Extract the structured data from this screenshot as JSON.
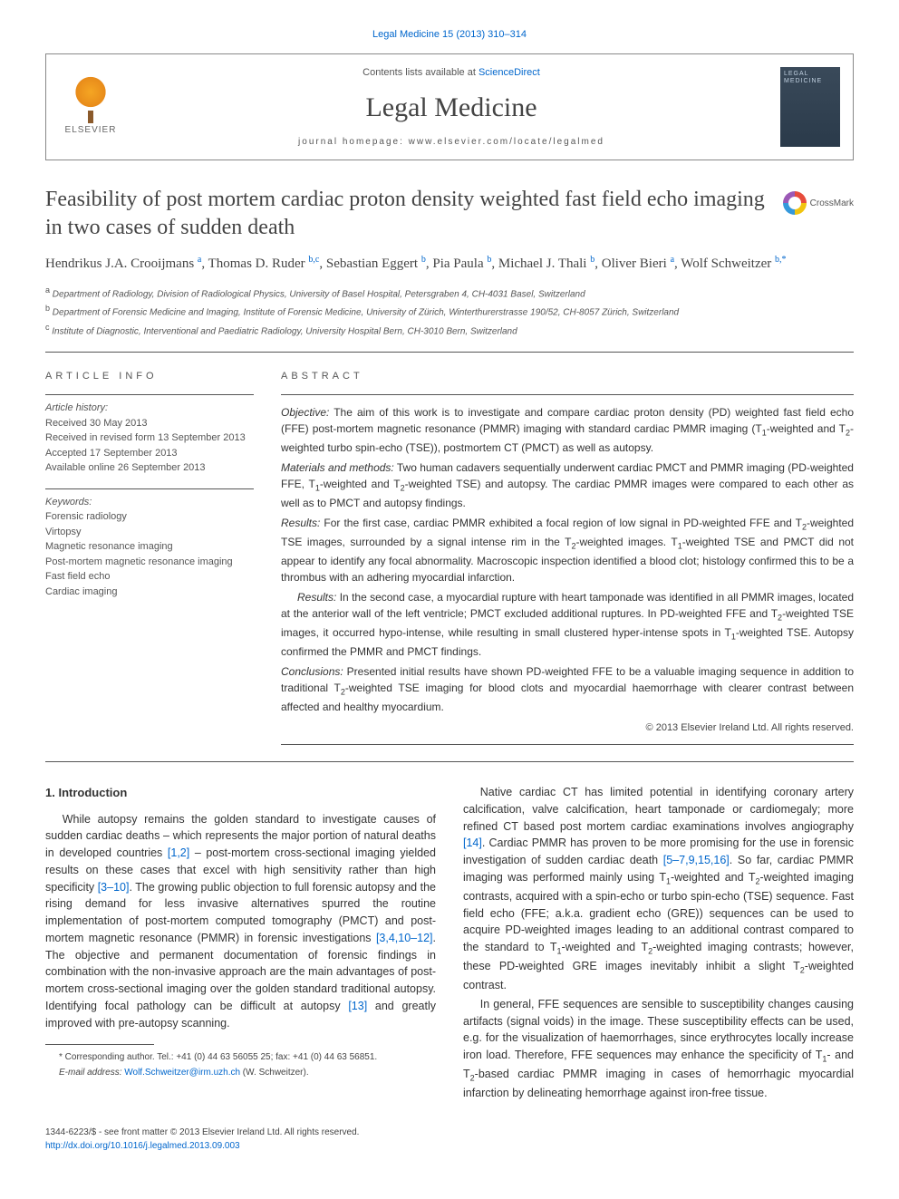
{
  "journal_ref": "Legal Medicine 15 (2013) 310–314",
  "header": {
    "contents_prefix": "Contents lists available at ",
    "contents_link": "ScienceDirect",
    "journal_name": "Legal Medicine",
    "homepage_prefix": "journal homepage: ",
    "homepage_url": "www.elsevier.com/locate/legalmed",
    "elsevier_label": "ELSEVIER",
    "cover_text": "LEGAL MEDICINE"
  },
  "crossmark_label": "CrossMark",
  "title": "Feasibility of post mortem cardiac proton density weighted fast field echo imaging in two cases of sudden death",
  "authors_html": "Hendrikus J.A. Crooijmans <sup>a</sup>, Thomas D. Ruder <sup>b,c</sup>, Sebastian Eggert <sup>b</sup>, Pia Paula <sup>b</sup>, Michael J. Thali <sup>b</sup>, Oliver Bieri <sup>a</sup>, Wolf Schweitzer <sup>b,*</sup>",
  "affiliations": [
    {
      "key": "a",
      "text": "Department of Radiology, Division of Radiological Physics, University of Basel Hospital, Petersgraben 4, CH-4031 Basel, Switzerland"
    },
    {
      "key": "b",
      "text": "Department of Forensic Medicine and Imaging, Institute of Forensic Medicine, University of Zürich, Winterthurerstrasse 190/52, CH-8057 Zürich, Switzerland"
    },
    {
      "key": "c",
      "text": "Institute of Diagnostic, Interventional and Paediatric Radiology, University Hospital Bern, CH-3010 Bern, Switzerland"
    }
  ],
  "article_info": {
    "head": "ARTICLE INFO",
    "history_label": "Article history:",
    "history": [
      "Received 30 May 2013",
      "Received in revised form 13 September 2013",
      "Accepted 17 September 2013",
      "Available online 26 September 2013"
    ],
    "keywords_label": "Keywords:",
    "keywords": [
      "Forensic radiology",
      "Virtopsy",
      "Magnetic resonance imaging",
      "Post-mortem magnetic resonance imaging",
      "Fast field echo",
      "Cardiac imaging"
    ]
  },
  "abstract": {
    "head": "ABSTRACT",
    "paragraphs": [
      {
        "label": "Objective:",
        "text": " The aim of this work is to investigate and compare cardiac proton density (PD) weighted fast field echo (FFE) post-mortem magnetic resonance (PMMR) imaging with standard cardiac PMMR imaging (T<sub>1</sub>-weighted and T<sub>2</sub>-weighted turbo spin-echo (TSE)), postmortem CT (PMCT) as well as autopsy."
      },
      {
        "label": "Materials and methods:",
        "text": " Two human cadavers sequentially underwent cardiac PMCT and PMMR imaging (PD-weighted FFE, T<sub>1</sub>-weighted and T<sub>2</sub>-weighted TSE) and autopsy. The cardiac PMMR images were compared to each other as well as to PMCT and autopsy findings."
      },
      {
        "label": "Results:",
        "text": " For the first case, cardiac PMMR exhibited a focal region of low signal in PD-weighted FFE and T<sub>2</sub>-weighted TSE images, surrounded by a signal intense rim in the T<sub>2</sub>-weighted images. T<sub>1</sub>-weighted TSE and PMCT did not appear to identify any focal abnormality. Macroscopic inspection identified a blood clot; histology confirmed this to be a thrombus with an adhering myocardial infarction."
      },
      {
        "label": "Results:",
        "text": " In the second case, a myocardial rupture with heart tamponade was identified in all PMMR images, located at the anterior wall of the left ventricle; PMCT excluded additional ruptures. In PD-weighted FFE and T<sub>2</sub>-weighted TSE images, it occurred hypo-intense, while resulting in small clustered hyper-intense spots in T<sub>1</sub>-weighted TSE. Autopsy confirmed the PMMR and PMCT findings."
      },
      {
        "label": "Conclusions:",
        "text": " Presented initial results have shown PD-weighted FFE to be a valuable imaging sequence in addition to traditional T<sub>2</sub>-weighted TSE imaging for blood clots and myocardial haemorrhage with clearer contrast between affected and healthy myocardium."
      }
    ],
    "copyright": "© 2013 Elsevier Ireland Ltd. All rights reserved."
  },
  "body": {
    "intro_head": "1. Introduction",
    "p1a": "While autopsy remains the golden standard to investigate causes of sudden cardiac deaths – which represents the major portion of natural deaths in developed countries ",
    "ref1": "[1,2]",
    "p1b": " – post-mortem cross-sectional imaging yielded results on these cases that excel with high sensitivity rather than high specificity ",
    "ref2": "[3–10]",
    "p1c": ". The growing public objection to full forensic autopsy and the rising demand for less invasive alternatives spurred the routine implementation of post-mortem computed tomography (PMCT) and post-mortem magnetic resonance (PMMR) in forensic investigations ",
    "ref3": "[3,4,10–12]",
    "p1d": ". The objective and permanent documentation of forensic findings in combination with the non-invasive approach are the main advantages of post-mortem cross-sectional imaging over the golden standard traditional autopsy. Identifying focal pathology can be difficult at autopsy ",
    "ref4": "[13]",
    "p1e": " and greatly improved with pre-autopsy scanning.",
    "p2a": "Native cardiac CT has limited potential in identifying coronary artery calcification, valve calcification, heart tamponade or cardiomegaly; more refined CT based post mortem cardiac examinations involves angiography ",
    "ref5": "[14]",
    "p2b": ". Cardiac PMMR has proven to be more promising for the use in forensic investigation of sudden cardiac death ",
    "ref6": "[5–7,9,15,16]",
    "p2c": ". So far, cardiac PMMR imaging was performed mainly using T",
    "p2d": "-weighted and T",
    "p2e": "-weighted imaging contrasts, acquired with a spin-echo or turbo spin-echo (TSE) sequence. Fast field echo (FFE; a.k.a. gradient echo (GRE)) sequences can be used to acquire PD-weighted images leading to an additional contrast compared to the standard to T",
    "p2f": "-weighted and T",
    "p2g": "-weighted imaging contrasts; however, these PD-weighted GRE images inevitably inhibit a slight T",
    "p2h": "-weighted contrast.",
    "p3": "In general, FFE sequences are sensible to susceptibility changes causing artifacts (signal voids) in the image. These susceptibility effects can be used, e.g. for the visualization of haemorrhages, since erythrocytes locally increase iron load. Therefore, FFE sequences may enhance the specificity of T<sub>1</sub>- and T<sub>2</sub>-based cardiac PMMR imaging in cases of hemorrhagic myocardial infarction by delineating hemorrhage against iron-free tissue."
  },
  "footnote": {
    "corresponding": "* Corresponding author. Tel.: +41 (0) 44 63 56055 25; fax: +41 (0) 44 63 56851.",
    "email_label": "E-mail address: ",
    "email": "Wolf.Schweitzer@irm.uzh.ch",
    "email_suffix": " (W. Schweitzer)."
  },
  "footer": {
    "line1": "1344-6223/$ - see front matter © 2013 Elsevier Ireland Ltd. All rights reserved.",
    "doi": "http://dx.doi.org/10.1016/j.legalmed.2013.09.003"
  },
  "colors": {
    "link": "#0066cc",
    "text": "#333333",
    "muted": "#555555",
    "rule": "#555555"
  },
  "typography": {
    "body_fontsize": 13,
    "title_fontsize": 24,
    "journal_fontsize": 30,
    "abstract_fontsize": 12
  }
}
